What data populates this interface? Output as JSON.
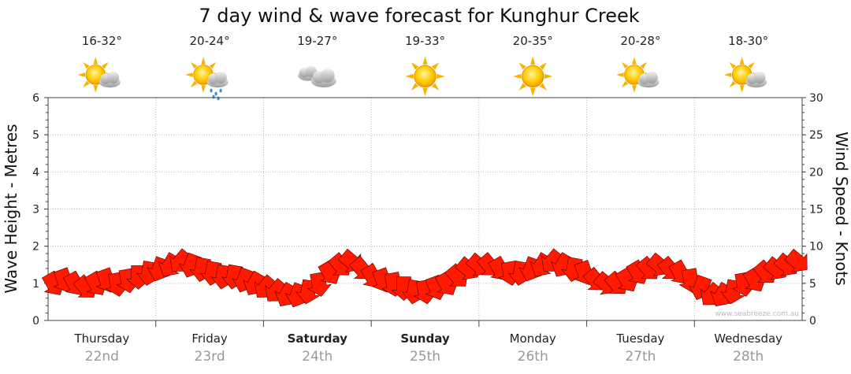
{
  "chart_data": {
    "type": "wind-wave-forecast",
    "title": "7 day wind & wave forecast for Kunghur Creek",
    "ylabel_left": "Wave Height - Metres",
    "ylabel_right": "Wind Speed - Knots",
    "ylim_left": [
      0,
      6
    ],
    "ylim_right": [
      0,
      30
    ],
    "yticks_left": [
      "0",
      "1",
      "2",
      "3",
      "4",
      "5",
      "6"
    ],
    "yticks_right": [
      "0",
      "5",
      "10",
      "15",
      "20",
      "25",
      "30"
    ],
    "grid": true,
    "watermark": "www.seabreeze.com.au",
    "days": [
      {
        "day": "Thursday",
        "date": "22nd",
        "temp": "16-32°",
        "icon": "sun-cloud-icon",
        "bold": false
      },
      {
        "day": "Friday",
        "date": "23rd",
        "temp": "20-24°",
        "icon": "sun-cloud-rain-icon",
        "bold": false
      },
      {
        "day": "Saturday",
        "date": "24th",
        "temp": "19-27°",
        "icon": "cloud-icon",
        "bold": true
      },
      {
        "day": "Sunday",
        "date": "25th",
        "temp": "19-33°",
        "icon": "sun-icon",
        "bold": true
      },
      {
        "day": "Monday",
        "date": "26th",
        "temp": "20-35°",
        "icon": "sun-icon",
        "bold": false
      },
      {
        "day": "Tuesday",
        "date": "27th",
        "temp": "20-28°",
        "icon": "sun-cloud-icon",
        "bold": false
      },
      {
        "day": "Wednesday",
        "date": "28th",
        "temp": "18-30°",
        "icon": "sun-cloud-icon",
        "bold": false
      }
    ],
    "wind_speed_knots": [
      5,
      5.5,
      5,
      4.5,
      5,
      5.5,
      5,
      5.5,
      6,
      6.5,
      7,
      7.5,
      8,
      7.5,
      7,
      6.5,
      6,
      6,
      5.5,
      5,
      4.5,
      4,
      3.5,
      3.5,
      4,
      5,
      6.5,
      7.5,
      8,
      7,
      6,
      5.5,
      5,
      4.5,
      4,
      4,
      4.5,
      5,
      6,
      7,
      7.5,
      7.5,
      7,
      6.5,
      6.5,
      7,
      7.5,
      8,
      7.5,
      7,
      6.5,
      5.5,
      5,
      5,
      5.5,
      6.5,
      7,
      7.5,
      7,
      6.5,
      5.5,
      4.5,
      3.5,
      3.5,
      4,
      5,
      5.5,
      6.5,
      7,
      7.5,
      8
    ],
    "wind_dir_deg": [
      150,
      160,
      150,
      140,
      150,
      160,
      170,
      170,
      180,
      190,
      200,
      210,
      220,
      200,
      190,
      190,
      190,
      190,
      200,
      210,
      220,
      220,
      210,
      200,
      190,
      170,
      150,
      140,
      130,
      140,
      150,
      160,
      170,
      180,
      190,
      170,
      160,
      150,
      140,
      130,
      130,
      140,
      150,
      170,
      190,
      200,
      210,
      220,
      210,
      190,
      160,
      140,
      130,
      140,
      150,
      150,
      140,
      130,
      140,
      150,
      170,
      200,
      220,
      210,
      190,
      170,
      150,
      140,
      130,
      130,
      130
    ]
  }
}
